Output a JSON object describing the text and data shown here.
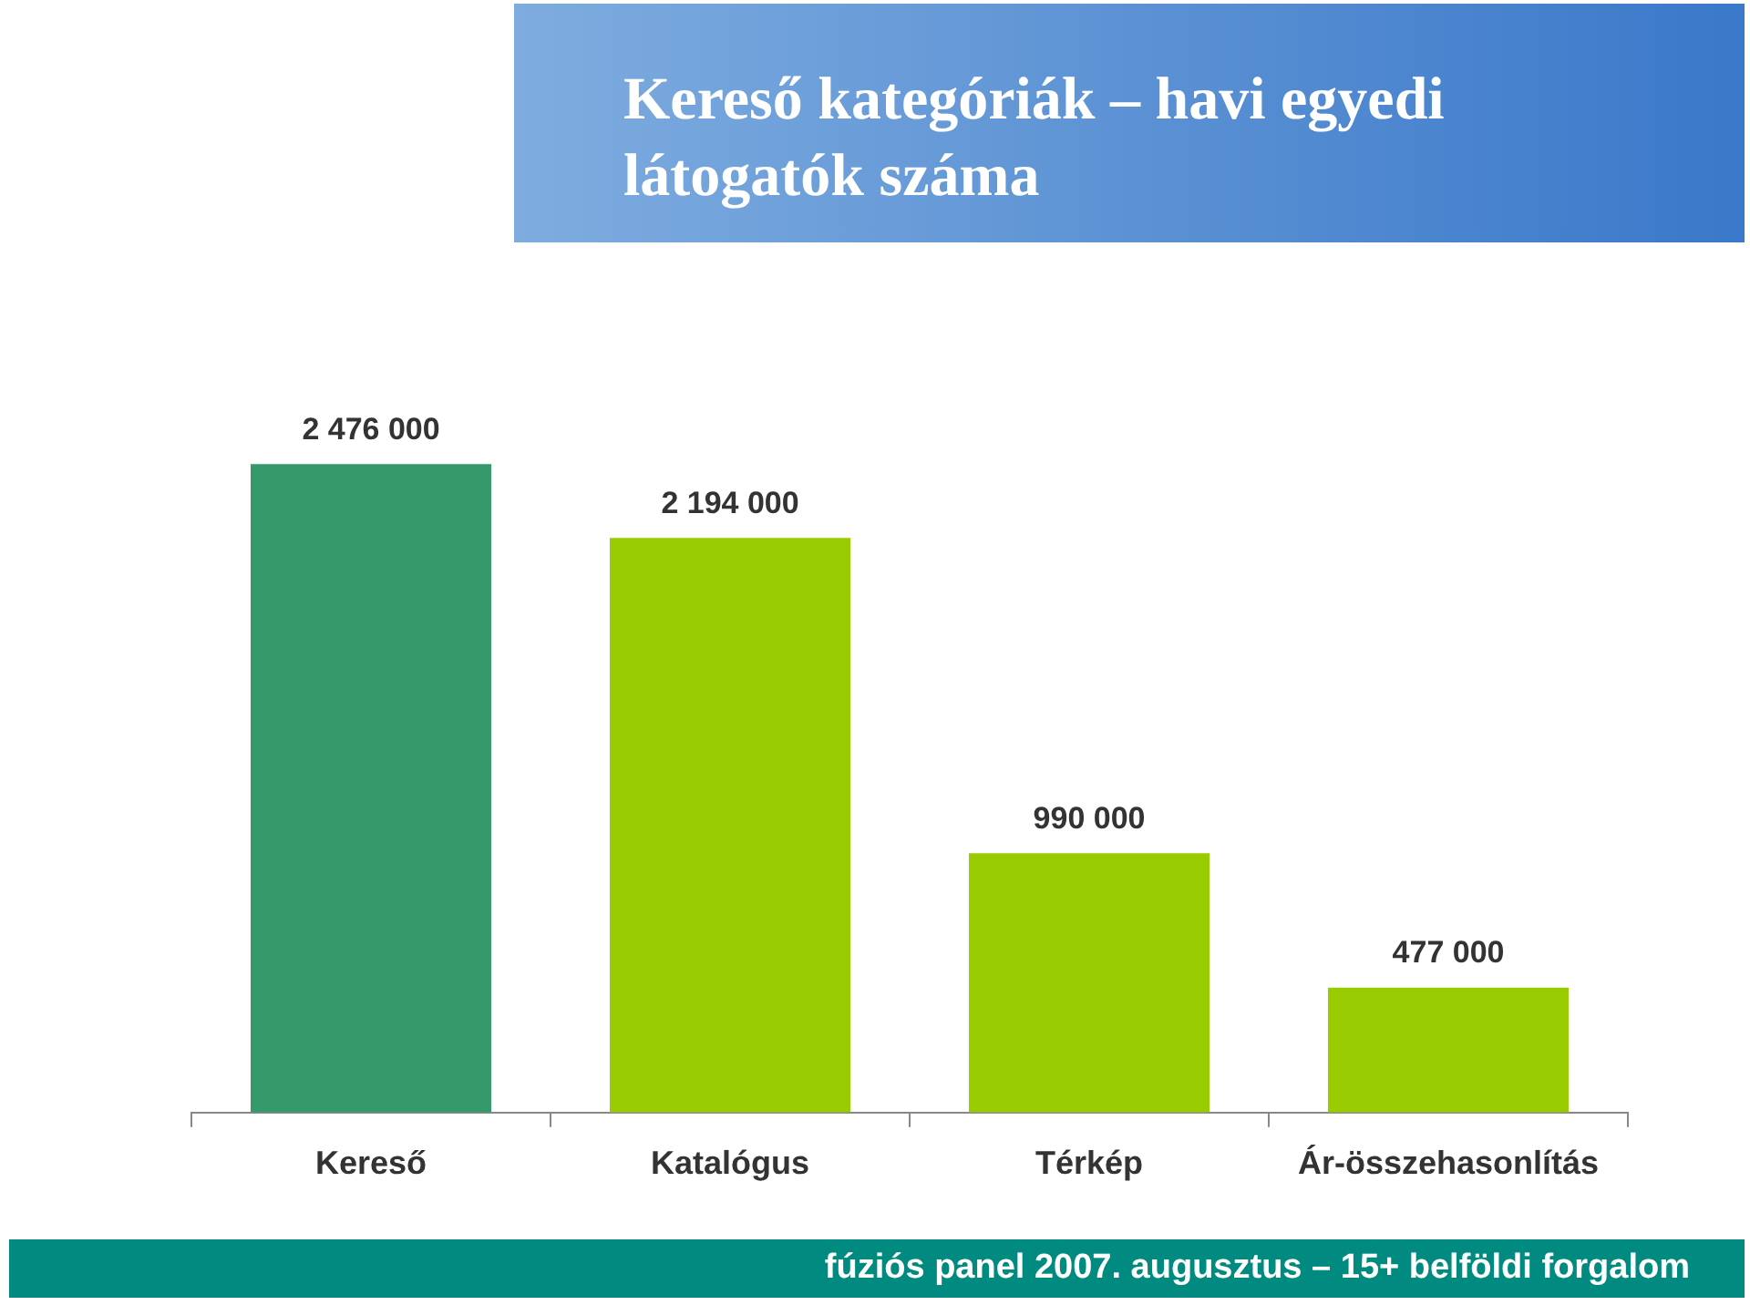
{
  "chart_data": {
    "type": "bar",
    "title": "Kereső kategóriák – havi egyedi látogatók száma",
    "categories": [
      "Kereső",
      "Katalógus",
      "Térkép",
      "Ár-összehasonlítás"
    ],
    "values": [
      2476000,
      2194000,
      990000,
      477000
    ],
    "colors": [
      "#35996b",
      "#99cc00",
      "#99cc00",
      "#99cc00"
    ],
    "value_labels": [
      "2 476 000",
      "2 194 000",
      "990 000",
      "477 000"
    ],
    "annotations": [
      "fúziós panel 2007. augusztus – 15+ belföldi forgalom"
    ]
  }
}
